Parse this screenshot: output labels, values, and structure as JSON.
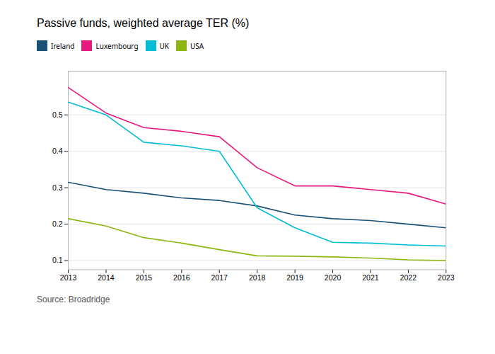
{
  "chart_data": {
    "type": "line",
    "title": "Passive funds, weighted average TER (%)",
    "source": "Source: Broadridge",
    "x": [
      2013,
      2014,
      2015,
      2016,
      2017,
      2018,
      2019,
      2020,
      2021,
      2022,
      2023
    ],
    "series": [
      {
        "name": "Ireland",
        "color": "#1a5276",
        "values": [
          0.315,
          0.295,
          0.285,
          0.272,
          0.265,
          0.25,
          0.225,
          0.215,
          0.21,
          0.2,
          0.19
        ]
      },
      {
        "name": "Luxembourg",
        "color": "#e8197d",
        "values": [
          0.575,
          0.505,
          0.465,
          0.455,
          0.44,
          0.355,
          0.305,
          0.305,
          0.295,
          0.285,
          0.255
        ]
      },
      {
        "name": "UK",
        "color": "#00bcd4",
        "values": [
          0.535,
          0.5,
          0.425,
          0.415,
          0.4,
          0.245,
          0.19,
          0.15,
          0.148,
          0.143,
          0.14
        ]
      },
      {
        "name": "USA",
        "color": "#8db510",
        "values": [
          0.215,
          0.195,
          0.163,
          0.148,
          0.13,
          0.113,
          0.112,
          0.11,
          0.107,
          0.102,
          0.1
        ]
      }
    ],
    "xlim": [
      2013,
      2023
    ],
    "xticks": [
      2013,
      2014,
      2015,
      2016,
      2017,
      2018,
      2019,
      2020,
      2021,
      2022,
      2023
    ],
    "ylim": [
      0.075,
      0.62
    ],
    "yticks": [
      0.1,
      0.2,
      0.3,
      0.4,
      0.5
    ],
    "grid": true,
    "legend": "top"
  }
}
